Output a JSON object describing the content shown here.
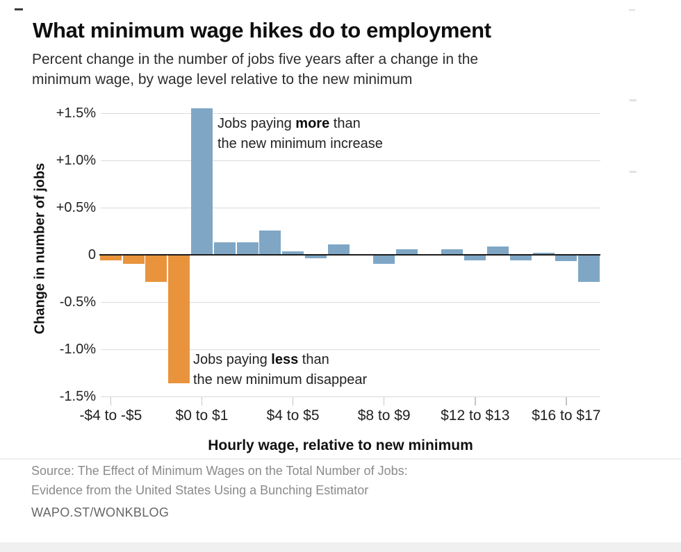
{
  "header": {
    "title": "What minimum wage hikes do to employment",
    "subtitle_line1": "Percent change in the number of jobs five years after a change in the",
    "subtitle_line2": "minimum wage, by wage level relative to the new minimum"
  },
  "annotations": {
    "more": {
      "pre": "Jobs paying ",
      "bold": "more",
      "post": " than",
      "line2": "the new minimum increase"
    },
    "less": {
      "pre": "Jobs paying ",
      "bold": "less",
      "post": " than",
      "line2": "the new minimum disappear"
    }
  },
  "footer": {
    "source_line1": "Source: The Effect of Minimum Wages on the Total Number of Jobs:",
    "source_line2": "Evidence from the United States Using a Bunching Estimator",
    "credit": "WAPO.ST/WONKBLOG"
  },
  "chart_data": {
    "type": "bar",
    "title": "What minimum wage hikes do to employment",
    "xlabel": "Hourly wage, relative to new minimum",
    "ylabel": "Change in number of jobs",
    "unit": "percent",
    "ylim": [
      -1.5,
      1.5
    ],
    "grid": true,
    "legend": "none",
    "yticks": [
      {
        "value": 1.5,
        "label": "+1.5%"
      },
      {
        "value": 1.0,
        "label": "+1.0%"
      },
      {
        "value": 0.5,
        "label": "+0.5%"
      },
      {
        "value": 0,
        "label": "0"
      },
      {
        "value": -0.5,
        "label": "-0.5%"
      },
      {
        "value": -1.0,
        "label": "-1.0%"
      },
      {
        "value": -1.5,
        "label": "-1.5%"
      }
    ],
    "values": [
      -0.05,
      -0.09,
      -0.28,
      -1.35,
      1.55,
      0.13,
      0.13,
      0.26,
      0.04,
      -0.03,
      0.11,
      0.0,
      -0.09,
      0.06,
      0.0,
      0.06,
      -0.05,
      0.09,
      -0.05,
      0.02,
      -0.06,
      -0.28
    ],
    "below_minimum_bins": 4,
    "bar_colors": {
      "below_minimum": "#e9943c",
      "above_minimum": "#7fa7c5"
    },
    "xticks": [
      {
        "bin_index": 0,
        "label": "-$4 to -$5"
      },
      {
        "bin_index": 4,
        "label": "$0 to $1"
      },
      {
        "bin_index": 8,
        "label": "$4 to $5"
      },
      {
        "bin_index": 12,
        "label": "$8 to $9"
      },
      {
        "bin_index": 16,
        "label": "$12 to $13"
      },
      {
        "bin_index": 20,
        "label": "$16 to $17"
      }
    ]
  }
}
